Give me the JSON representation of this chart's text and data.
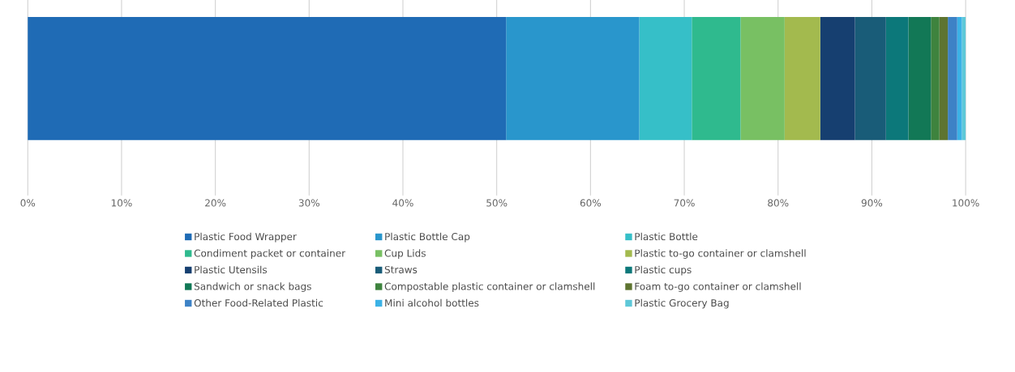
{
  "chart_data": {
    "type": "bar",
    "orientation": "horizontal",
    "stacked": true,
    "categories": [
      null
    ],
    "xlim": [
      0,
      100
    ],
    "xticks": [
      {
        "value": 0,
        "label": "0%"
      },
      {
        "value": 10,
        "label": "10%"
      },
      {
        "value": 20,
        "label": "20%"
      },
      {
        "value": 30,
        "label": "30%"
      },
      {
        "value": 40,
        "label": "40%"
      },
      {
        "value": 50,
        "label": "50%"
      },
      {
        "value": 60,
        "label": "60%"
      },
      {
        "value": 70,
        "label": "70%"
      },
      {
        "value": 80,
        "label": "80%"
      },
      {
        "value": 90,
        "label": "90%"
      },
      {
        "value": 100,
        "label": "100%"
      }
    ],
    "grid": "x",
    "legend": "bottom",
    "series": [
      {
        "name": "Plastic Food Wrapper",
        "color": "#1f6bb5",
        "values": [
          51.0
        ]
      },
      {
        "name": "Plastic Bottle Cap",
        "color": "#2996cc",
        "values": [
          14.2
        ]
      },
      {
        "name": "Plastic Bottle",
        "color": "#36bfc8",
        "values": [
          5.6
        ]
      },
      {
        "name": "Condiment packet or container",
        "color": "#2fba8e",
        "values": [
          5.2
        ]
      },
      {
        "name": "Cup Lids",
        "color": "#78c063",
        "values": [
          4.7
        ]
      },
      {
        "name": "Plastic to-go container or clamshell",
        "color": "#a3ba4e",
        "values": [
          3.8
        ]
      },
      {
        "name": "Plastic Utensils",
        "color": "#163f70",
        "values": [
          3.7
        ]
      },
      {
        "name": "Straws",
        "color": "#195c78",
        "values": [
          3.3
        ]
      },
      {
        "name": "Plastic cups",
        "color": "#0c787a",
        "values": [
          2.4
        ]
      },
      {
        "name": "Sandwich or snack bags",
        "color": "#127856",
        "values": [
          2.4
        ]
      },
      {
        "name": "Compostable plastic container or clamshell",
        "color": "#3e833e",
        "values": [
          0.9
        ]
      },
      {
        "name": "Foam to-go container or clamshell",
        "color": "#5e7430",
        "values": [
          0.9
        ]
      },
      {
        "name": "Other Food-Related Plastic",
        "color": "#3d82c6",
        "values": [
          1.0
        ]
      },
      {
        "name": "Mini alcohol bottles",
        "color": "#3bb2e6",
        "values": [
          0.5
        ]
      },
      {
        "name": "Plastic Grocery Bag",
        "color": "#5ec8d8",
        "values": [
          0.4
        ]
      }
    ]
  }
}
